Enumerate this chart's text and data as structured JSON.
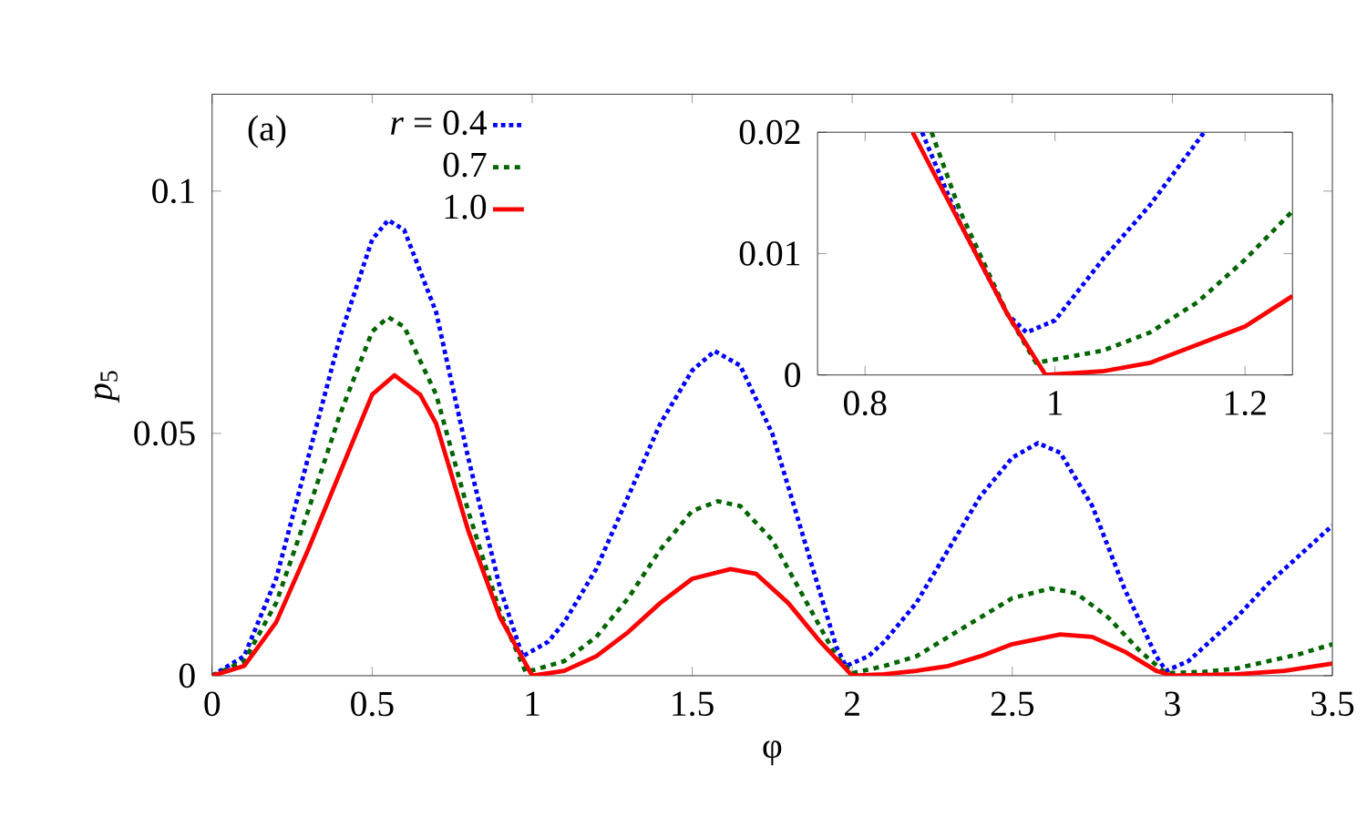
{
  "chart_data": [
    {
      "type": "line",
      "xlabel": "φ",
      "ylabel": "*p*$_{5}$",
      "annotations": [
        "(a)"
      ],
      "legend": "top left",
      "xlim": [
        0,
        3.5
      ],
      "ylim": [
        0,
        0.12
      ],
      "xticks": [
        0,
        0.5,
        1,
        1.5,
        2,
        2.5,
        3,
        3.5
      ],
      "yticks": [
        0,
        0.05,
        0.1
      ],
      "series": [
        {
          "name": "*r* = 0.4",
          "color": "#0000ff",
          "line_style": "dotted",
          "x": [
            0,
            0.1,
            0.2,
            0.3,
            0.4,
            0.5,
            0.55,
            0.6,
            0.7,
            0.8,
            0.9,
            0.97,
            1.05,
            1.1,
            1.2,
            1.3,
            1.4,
            1.5,
            1.57,
            1.65,
            1.75,
            1.85,
            1.95,
            1.98,
            2.05,
            2.1,
            2.2,
            2.3,
            2.4,
            2.5,
            2.58,
            2.65,
            2.75,
            2.85,
            2.95,
            2.98,
            3.05,
            3.1,
            3.2,
            3.3,
            3.4,
            3.5
          ],
          "values": [
            0,
            0.004,
            0.02,
            0.045,
            0.07,
            0.09,
            0.094,
            0.092,
            0.075,
            0.045,
            0.018,
            0.004,
            0.007,
            0.011,
            0.022,
            0.037,
            0.052,
            0.063,
            0.067,
            0.064,
            0.05,
            0.028,
            0.006,
            0.002,
            0.004,
            0.007,
            0.015,
            0.026,
            0.037,
            0.045,
            0.048,
            0.046,
            0.035,
            0.018,
            0.004,
            0.001,
            0.003,
            0.006,
            0.012,
            0.019,
            0.025,
            0.031
          ]
        },
        {
          "name": "0.7",
          "color": "#006400",
          "line_style": "dashed",
          "x": [
            0,
            0.1,
            0.2,
            0.3,
            0.4,
            0.5,
            0.55,
            0.6,
            0.7,
            0.8,
            0.9,
            0.98,
            1.1,
            1.2,
            1.3,
            1.4,
            1.5,
            1.58,
            1.65,
            1.75,
            1.85,
            1.95,
            2.0,
            2.1,
            2.2,
            2.3,
            2.4,
            2.5,
            2.62,
            2.7,
            2.8,
            2.9,
            2.98,
            3.1,
            3.2,
            3.3,
            3.4,
            3.5
          ],
          "values": [
            0,
            0.003,
            0.015,
            0.034,
            0.054,
            0.071,
            0.074,
            0.072,
            0.058,
            0.034,
            0.013,
            0.0007,
            0.003,
            0.008,
            0.016,
            0.026,
            0.034,
            0.036,
            0.035,
            0.028,
            0.016,
            0.004,
            0.0005,
            0.002,
            0.004,
            0.008,
            0.012,
            0.016,
            0.018,
            0.017,
            0.012,
            0.005,
            0.0005,
            0.0008,
            0.0015,
            0.003,
            0.0045,
            0.0065
          ]
        },
        {
          "name": "1.0",
          "color": "#ff0000",
          "line_style": "solid",
          "x": [
            0,
            0.1,
            0.2,
            0.3,
            0.4,
            0.5,
            0.57,
            0.65,
            0.7,
            0.8,
            0.9,
            1.0,
            1.1,
            1.2,
            1.3,
            1.4,
            1.5,
            1.62,
            1.7,
            1.8,
            1.9,
            2.0,
            2.1,
            2.2,
            2.3,
            2.4,
            2.5,
            2.65,
            2.75,
            2.85,
            2.95,
            3.0,
            3.2,
            3.35,
            3.5
          ],
          "values": [
            0,
            0.002,
            0.011,
            0.026,
            0.042,
            0.058,
            0.062,
            0.058,
            0.052,
            0.03,
            0.012,
            0,
            0.001,
            0.004,
            0.009,
            0.015,
            0.02,
            0.022,
            0.021,
            0.015,
            0.007,
            0,
            0.0003,
            0.001,
            0.002,
            0.004,
            0.0065,
            0.0085,
            0.008,
            0.005,
            0.001,
            0,
            0.0003,
            0.001,
            0.0025
          ]
        }
      ]
    },
    {
      "type": "line",
      "xlim": [
        0.75,
        1.25
      ],
      "ylim": [
        0,
        0.02
      ],
      "xticks": [
        0.8,
        1,
        1.2
      ],
      "yticks": [
        0,
        0.01,
        0.02
      ],
      "series": [
        {
          "color": "#0000ff",
          "line_style": "dotted",
          "x": [
            0.86,
            0.9,
            0.95,
            0.97,
            1.0,
            1.05,
            1.1,
            1.157
          ],
          "values": [
            0.02,
            0.0125,
            0.005,
            0.0035,
            0.0045,
            0.0095,
            0.014,
            0.02
          ]
        },
        {
          "color": "#006400",
          "line_style": "dashed",
          "x": [
            0.87,
            0.9,
            0.95,
            0.98,
            1.05,
            1.1,
            1.15,
            1.2,
            1.25
          ],
          "values": [
            0.02,
            0.0135,
            0.005,
            0.001,
            0.002,
            0.0035,
            0.006,
            0.0095,
            0.0135
          ]
        },
        {
          "color": "#ff0000",
          "line_style": "solid",
          "x": [
            0.85,
            0.9,
            0.95,
            0.99,
            1.05,
            1.1,
            1.15,
            1.2,
            1.25
          ],
          "values": [
            0.02,
            0.0125,
            0.005,
            0,
            0.0003,
            0.001,
            0.0025,
            0.004,
            0.0065
          ]
        }
      ]
    }
  ]
}
